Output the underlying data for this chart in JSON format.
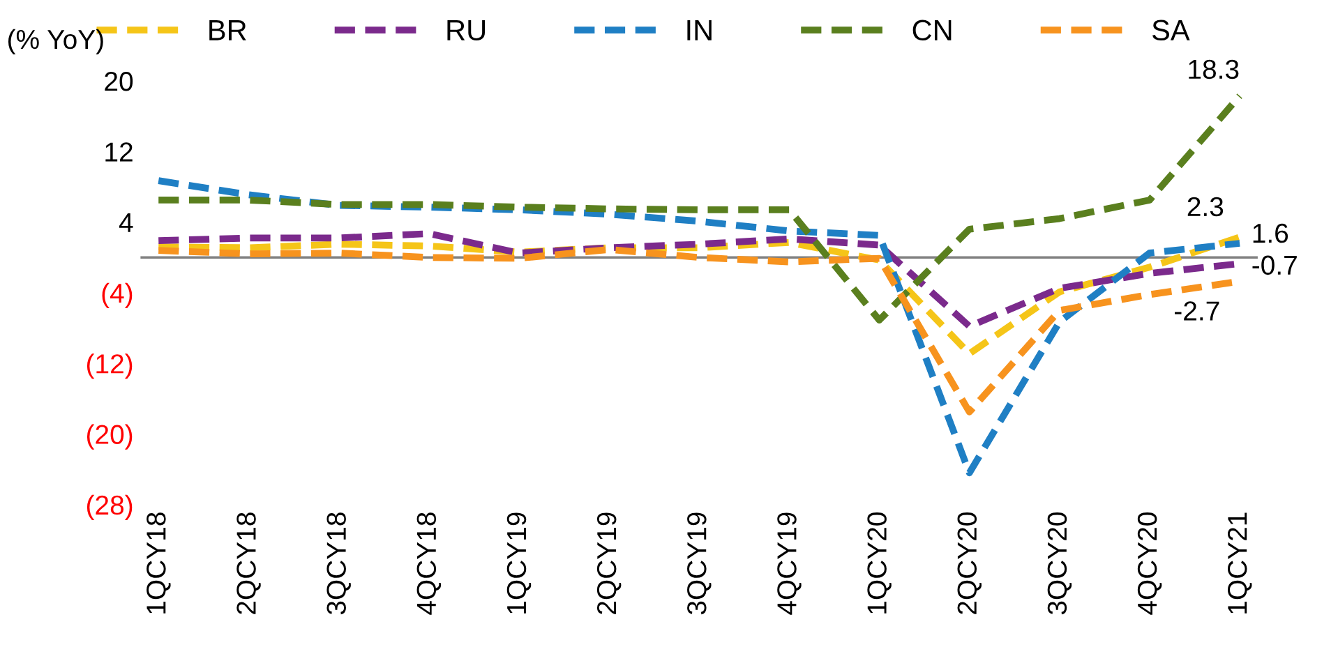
{
  "chart_data": {
    "type": "line",
    "ylabel": "(% YoY)",
    "categories": [
      "1QCY18",
      "2QCY18",
      "3QCY18",
      "4QCY18",
      "1QCY19",
      "2QCY19",
      "3QCY19",
      "4QCY19",
      "1QCY20",
      "2QCY20",
      "3QCY20",
      "4QCY20",
      "1QCY21"
    ],
    "series": [
      {
        "name": "BR",
        "color": "#f5c518",
        "values": [
          1.2,
          1.1,
          1.5,
          1.3,
          0.6,
          1.1,
          1.1,
          1.7,
          -0.3,
          -10.9,
          -3.9,
          -1.1,
          2.3
        ],
        "value_labels": [
          null,
          null,
          null,
          null,
          null,
          null,
          null,
          null,
          null,
          null,
          null,
          null,
          "2.3"
        ]
      },
      {
        "name": "RU",
        "color": "#7b2a8c",
        "values": [
          1.9,
          2.2,
          2.2,
          2.7,
          0.5,
          1.1,
          1.5,
          2.1,
          1.4,
          -7.8,
          -3.5,
          -1.8,
          -0.7
        ],
        "value_labels": [
          null,
          null,
          null,
          null,
          null,
          null,
          null,
          null,
          null,
          null,
          null,
          null,
          "-0.7"
        ]
      },
      {
        "name": "IN",
        "color": "#1f7fc4",
        "values": [
          8.7,
          7.1,
          5.9,
          5.7,
          5.4,
          4.9,
          4.1,
          3.0,
          2.5,
          -24.4,
          -7.3,
          0.5,
          1.6
        ],
        "value_labels": [
          null,
          null,
          null,
          null,
          null,
          null,
          null,
          null,
          null,
          null,
          null,
          null,
          "1.6"
        ]
      },
      {
        "name": "CN",
        "color": "#5a7f1e",
        "values": [
          6.5,
          6.5,
          6.0,
          6.0,
          5.7,
          5.5,
          5.4,
          5.4,
          -7.1,
          3.2,
          4.4,
          6.5,
          18.3
        ],
        "value_labels": [
          null,
          null,
          null,
          null,
          null,
          null,
          null,
          null,
          null,
          null,
          null,
          null,
          "18.3"
        ]
      },
      {
        "name": "SA",
        "color": "#f7931e",
        "values": [
          0.8,
          0.4,
          0.5,
          0.0,
          -0.1,
          0.9,
          0.0,
          -0.5,
          -0.1,
          -17.5,
          -6.0,
          -4.2,
          -2.7
        ],
        "value_labels": [
          null,
          null,
          null,
          null,
          null,
          null,
          null,
          null,
          null,
          null,
          null,
          null,
          "-2.7"
        ]
      }
    ],
    "ylim": [
      -28,
      20
    ],
    "yticks": [
      20,
      12,
      4,
      {
        "value": -4,
        "label": "(4)"
      },
      {
        "value": -12,
        "label": "(12)"
      },
      {
        "value": -20,
        "label": "(20)"
      },
      {
        "value": -28,
        "label": "(28)"
      }
    ],
    "ref_lines": [
      {
        "axis": "y",
        "value": 0,
        "color": "#808080"
      }
    ],
    "line_style": "dashed",
    "marker": "none",
    "grid": false,
    "legend": "top"
  }
}
